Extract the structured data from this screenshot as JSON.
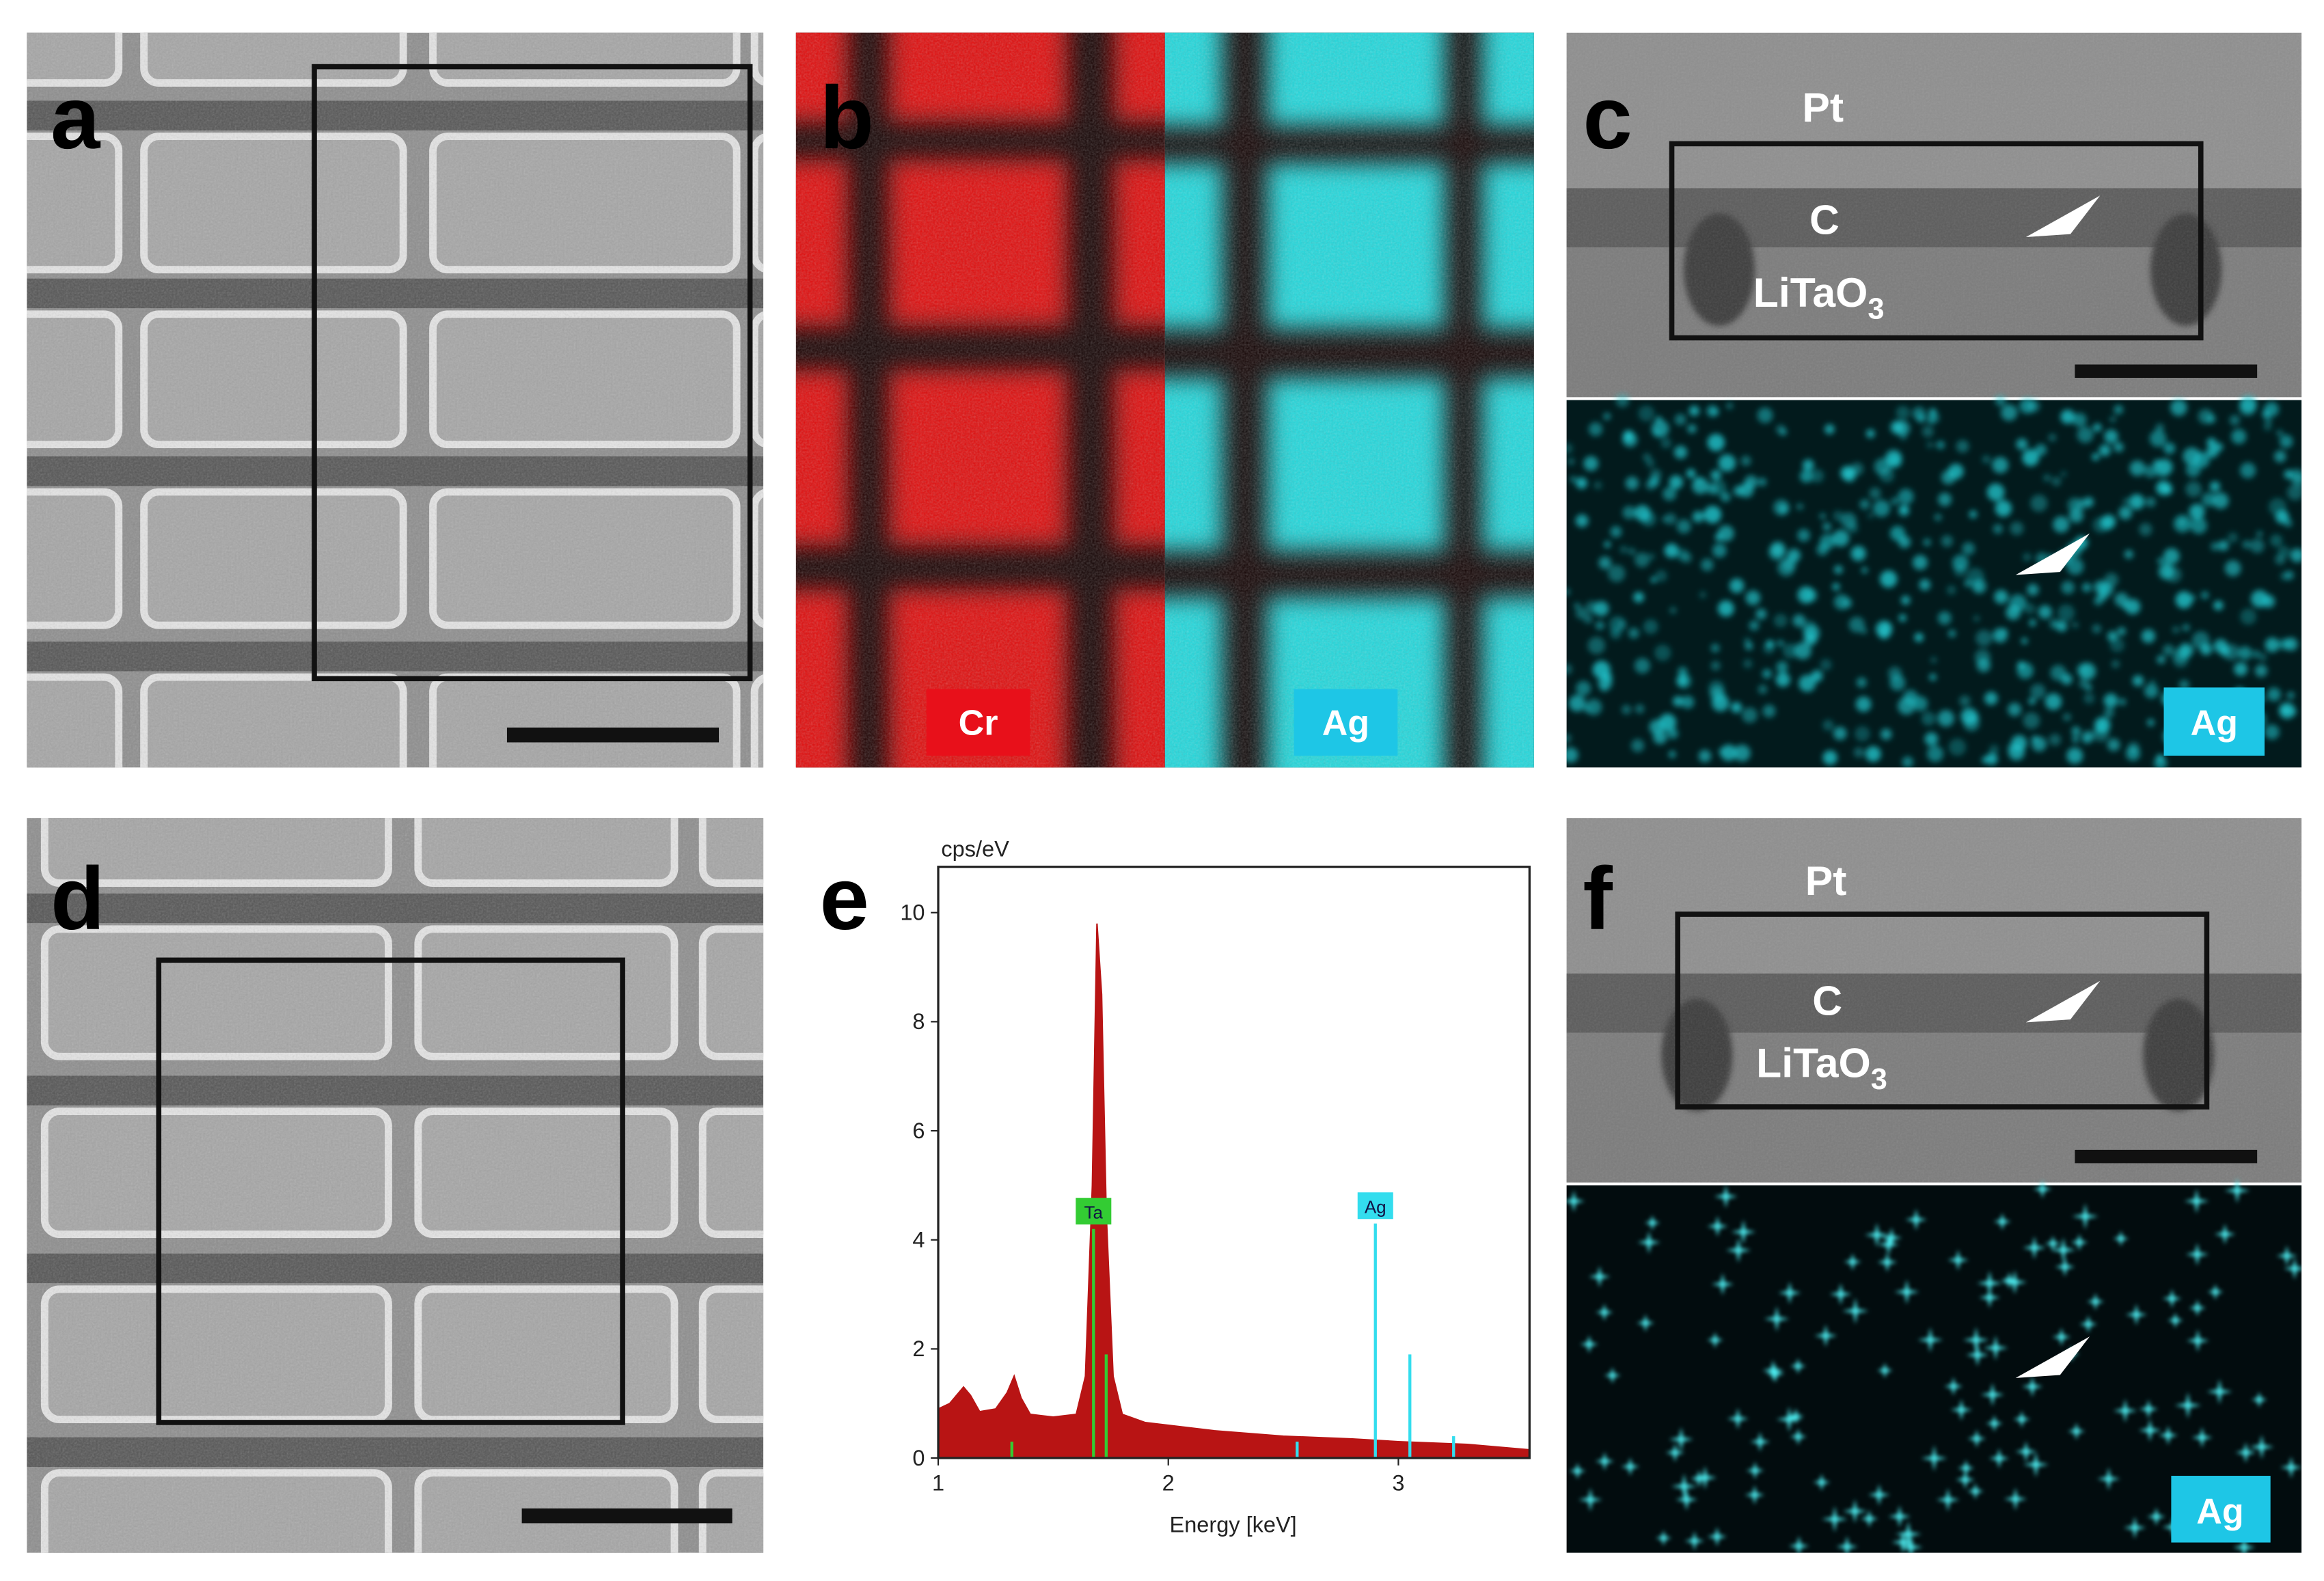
{
  "panels": {
    "a": {
      "letter": "a"
    },
    "b": {
      "letter": "b",
      "labels": [
        "Cr",
        "Ag"
      ]
    },
    "c": {
      "letter": "c",
      "layers": {
        "top": "Pt",
        "middle": "C",
        "bottom": "LiTaO",
        "bottom_sub": "3"
      },
      "map_label": "Ag"
    },
    "d": {
      "letter": "d"
    },
    "e": {
      "letter": "e"
    },
    "f": {
      "letter": "f",
      "layers": {
        "top": "Pt",
        "middle": "C",
        "bottom": "LiTaO",
        "bottom_sub": "3"
      },
      "map_label": "Ag"
    }
  },
  "chart_data": {
    "type": "area",
    "y_label": "cps/eV",
    "x_label": "Energy [keV]",
    "x": [
      1.0,
      1.05,
      1.08,
      1.11,
      1.14,
      1.18,
      1.25,
      1.3,
      1.33,
      1.36,
      1.4,
      1.5,
      1.6,
      1.64,
      1.67,
      1.69,
      1.71,
      1.73,
      1.76,
      1.8,
      1.9,
      2.0,
      2.2,
      2.5,
      2.8,
      3.0,
      3.3,
      3.57
    ],
    "values": [
      0.9,
      1.0,
      1.15,
      1.3,
      1.15,
      0.85,
      0.9,
      1.2,
      1.5,
      1.1,
      0.8,
      0.75,
      0.8,
      1.5,
      5.0,
      9.8,
      8.5,
      4.5,
      1.5,
      0.8,
      0.65,
      0.6,
      0.5,
      0.4,
      0.35,
      0.3,
      0.25,
      0.15
    ],
    "color": "#b81414",
    "xlim": [
      1,
      3.57
    ],
    "ylim": [
      0,
      10.84
    ],
    "xticks": [
      1,
      2,
      3
    ],
    "yticks": [
      0,
      2,
      4,
      6,
      8,
      10
    ],
    "peaks": [
      {
        "label": "Ta",
        "color": "#33cc33",
        "lines": [
          {
            "x": 1.32,
            "h": 0.3
          },
          {
            "x": 1.675,
            "h": 4.2
          },
          {
            "x": 1.73,
            "h": 1.9
          }
        ]
      },
      {
        "label": "Ag",
        "color": "#33ddee",
        "lines": [
          {
            "x": 2.56,
            "h": 0.3
          },
          {
            "x": 2.9,
            "h": 4.3
          },
          {
            "x": 3.05,
            "h": 1.9
          },
          {
            "x": 3.24,
            "h": 0.4
          }
        ]
      }
    ]
  }
}
